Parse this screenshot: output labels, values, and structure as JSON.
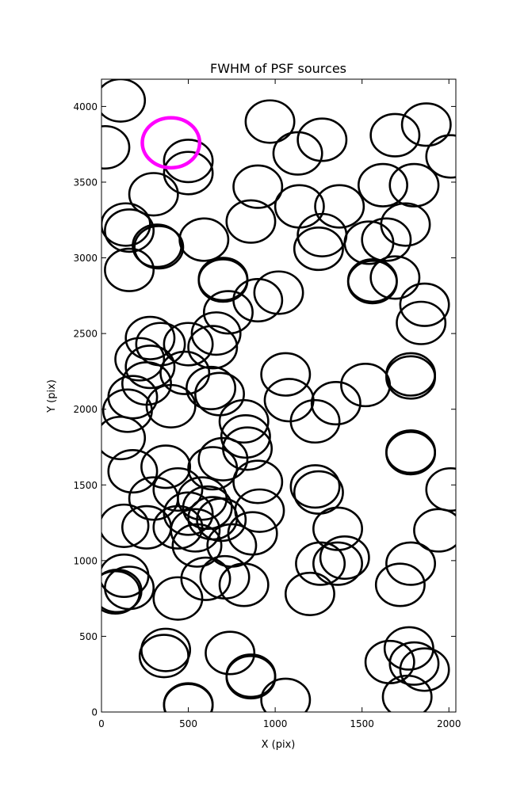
{
  "chart_data": {
    "type": "scatter",
    "title": "FWHM of PSF sources",
    "xlabel": "X (pix)",
    "ylabel": "Y (pix)",
    "xlim": [
      0,
      2040
    ],
    "ylim": [
      0,
      4180
    ],
    "xticks": [
      0,
      500,
      1000,
      1500,
      2000
    ],
    "yticks": [
      0,
      500,
      1000,
      1500,
      2000,
      2500,
      3000,
      3500,
      4000
    ],
    "grid": false,
    "marker": "open-circle",
    "source_radius": 140,
    "highlight_radius": 165,
    "source_color": "#000000",
    "highlight_color": "#ff00ff",
    "highlight": [
      {
        "x": 400,
        "y": 3760
      }
    ],
    "points": [
      {
        "x": 110,
        "y": 4040
      },
      {
        "x": 970,
        "y": 3900
      },
      {
        "x": 1870,
        "y": 3880
      },
      {
        "x": 20,
        "y": 3730
      },
      {
        "x": 1690,
        "y": 3810
      },
      {
        "x": 1270,
        "y": 3780
      },
      {
        "x": 1130,
        "y": 3690
      },
      {
        "x": 2010,
        "y": 3670
      },
      {
        "x": 500,
        "y": 3640
      },
      {
        "x": 500,
        "y": 3560
      },
      {
        "x": 900,
        "y": 3470
      },
      {
        "x": 1620,
        "y": 3480
      },
      {
        "x": 1800,
        "y": 3480
      },
      {
        "x": 300,
        "y": 3420
      },
      {
        "x": 1140,
        "y": 3340
      },
      {
        "x": 1370,
        "y": 3340
      },
      {
        "x": 860,
        "y": 3240
      },
      {
        "x": 140,
        "y": 3220
      },
      {
        "x": 160,
        "y": 3180
      },
      {
        "x": 1750,
        "y": 3220
      },
      {
        "x": 1270,
        "y": 3150
      },
      {
        "x": 1640,
        "y": 3120
      },
      {
        "x": 1540,
        "y": 3100
      },
      {
        "x": 590,
        "y": 3120
      },
      {
        "x": 320,
        "y": 3080
      },
      {
        "x": 330,
        "y": 3070
      },
      {
        "x": 1250,
        "y": 3060
      },
      {
        "x": 160,
        "y": 2920
      },
      {
        "x": 700,
        "y": 2860
      },
      {
        "x": 700,
        "y": 2850
      },
      {
        "x": 1560,
        "y": 2850
      },
      {
        "x": 1560,
        "y": 2840
      },
      {
        "x": 1690,
        "y": 2870
      },
      {
        "x": 1020,
        "y": 2770
      },
      {
        "x": 900,
        "y": 2720
      },
      {
        "x": 1860,
        "y": 2690
      },
      {
        "x": 730,
        "y": 2640
      },
      {
        "x": 1840,
        "y": 2570
      },
      {
        "x": 660,
        "y": 2500
      },
      {
        "x": 280,
        "y": 2470
      },
      {
        "x": 340,
        "y": 2430
      },
      {
        "x": 500,
        "y": 2430
      },
      {
        "x": 640,
        "y": 2410
      },
      {
        "x": 220,
        "y": 2330
      },
      {
        "x": 280,
        "y": 2280
      },
      {
        "x": 480,
        "y": 2240
      },
      {
        "x": 1060,
        "y": 2230
      },
      {
        "x": 1780,
        "y": 2230
      },
      {
        "x": 1780,
        "y": 2210
      },
      {
        "x": 260,
        "y": 2170
      },
      {
        "x": 630,
        "y": 2140
      },
      {
        "x": 1520,
        "y": 2160
      },
      {
        "x": 680,
        "y": 2100
      },
      {
        "x": 180,
        "y": 2080
      },
      {
        "x": 1080,
        "y": 2060
      },
      {
        "x": 1350,
        "y": 2040
      },
      {
        "x": 400,
        "y": 2020
      },
      {
        "x": 150,
        "y": 1990
      },
      {
        "x": 820,
        "y": 1920
      },
      {
        "x": 1230,
        "y": 1920
      },
      {
        "x": 830,
        "y": 1820
      },
      {
        "x": 110,
        "y": 1810
      },
      {
        "x": 840,
        "y": 1740
      },
      {
        "x": 1780,
        "y": 1720
      },
      {
        "x": 1780,
        "y": 1710
      },
      {
        "x": 700,
        "y": 1670
      },
      {
        "x": 370,
        "y": 1620
      },
      {
        "x": 640,
        "y": 1610
      },
      {
        "x": 180,
        "y": 1590
      },
      {
        "x": 900,
        "y": 1520
      },
      {
        "x": 1230,
        "y": 1490
      },
      {
        "x": 1250,
        "y": 1450
      },
      {
        "x": 440,
        "y": 1470
      },
      {
        "x": 2010,
        "y": 1470
      },
      {
        "x": 580,
        "y": 1410
      },
      {
        "x": 300,
        "y": 1410
      },
      {
        "x": 610,
        "y": 1350
      },
      {
        "x": 500,
        "y": 1310
      },
      {
        "x": 910,
        "y": 1330
      },
      {
        "x": 640,
        "y": 1280
      },
      {
        "x": 690,
        "y": 1270
      },
      {
        "x": 130,
        "y": 1230
      },
      {
        "x": 260,
        "y": 1220
      },
      {
        "x": 440,
        "y": 1220
      },
      {
        "x": 540,
        "y": 1200
      },
      {
        "x": 1360,
        "y": 1210
      },
      {
        "x": 1940,
        "y": 1200
      },
      {
        "x": 870,
        "y": 1180
      },
      {
        "x": 750,
        "y": 1100
      },
      {
        "x": 550,
        "y": 1100
      },
      {
        "x": 1400,
        "y": 1020
      },
      {
        "x": 1260,
        "y": 980
      },
      {
        "x": 1360,
        "y": 980
      },
      {
        "x": 1780,
        "y": 980
      },
      {
        "x": 130,
        "y": 900
      },
      {
        "x": 710,
        "y": 890
      },
      {
        "x": 600,
        "y": 880
      },
      {
        "x": 820,
        "y": 840
      },
      {
        "x": 160,
        "y": 820
      },
      {
        "x": 1720,
        "y": 840
      },
      {
        "x": 90,
        "y": 800
      },
      {
        "x": 80,
        "y": 790
      },
      {
        "x": 1200,
        "y": 780
      },
      {
        "x": 440,
        "y": 750
      },
      {
        "x": 370,
        "y": 410
      },
      {
        "x": 740,
        "y": 390
      },
      {
        "x": 1770,
        "y": 420
      },
      {
        "x": 360,
        "y": 370
      },
      {
        "x": 1660,
        "y": 330
      },
      {
        "x": 1800,
        "y": 320
      },
      {
        "x": 1860,
        "y": 280
      },
      {
        "x": 860,
        "y": 240
      },
      {
        "x": 860,
        "y": 230
      },
      {
        "x": 1760,
        "y": 100
      },
      {
        "x": 1060,
        "y": 80
      },
      {
        "x": 500,
        "y": 50
      },
      {
        "x": 500,
        "y": 45
      }
    ]
  }
}
